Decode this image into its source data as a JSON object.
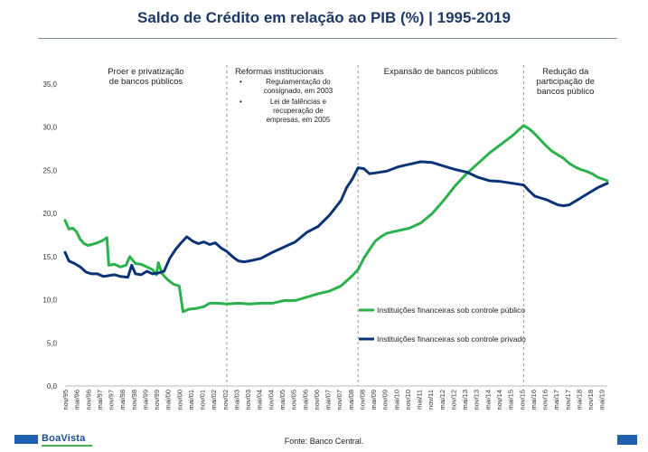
{
  "title": "Saldo de Crédito em relação ao PIB (%) | 1995-2019",
  "footer": {
    "logo_text": "BoaVista",
    "source": "Fonte: Banco Central."
  },
  "colors": {
    "publico": "#2bb24c",
    "privado": "#0b3478",
    "divider": "#999999",
    "title": "#1f3864"
  },
  "chart_data": {
    "type": "line",
    "ylim": [
      0,
      35
    ],
    "y_ticks": [
      "0,0",
      "5,0",
      "10,0",
      "15,0",
      "20,0",
      "25,0",
      "30,0",
      "35,0"
    ],
    "x_tick_labels": [
      "nov/95",
      "mai/96",
      "nov/96",
      "mai/97",
      "nov/97",
      "mai/98",
      "nov/98",
      "mai/99",
      "nov/99",
      "mai/00",
      "nov/00",
      "mai/01",
      "nov/01",
      "mai/02",
      "nov/02",
      "mai/03",
      "nov/03",
      "mai/04",
      "nov/04",
      "mai/05",
      "nov/05",
      "mai/06",
      "nov/06",
      "mai/07",
      "nov/07",
      "mai/08",
      "nov/08",
      "mai/09",
      "nov/09",
      "mai/10",
      "nov/10",
      "mai/11",
      "nov/11",
      "mai/12",
      "nov/12",
      "mai/13",
      "nov/13",
      "mai/14",
      "nov/14",
      "mai/15",
      "nov/15",
      "mai/16",
      "nov/16",
      "mai/17",
      "nov/17",
      "mai/18",
      "nov/18",
      "mai/19"
    ],
    "x_start": "1995-11",
    "x_end": "2019-08",
    "period_dividers": [
      "2002-12",
      "2008-09",
      "2015-12"
    ],
    "periods": [
      {
        "label": "Proer e privatização\nde bancos públicos",
        "bullets": []
      },
      {
        "label": "Reformas institucionais",
        "bullets": [
          "Regulamentação do\nconsignado, em 2003",
          "Lei de falências e\nrecuperação de\nempresas, em 2005"
        ]
      },
      {
        "label": "Expansão de bancos públicos",
        "bullets": []
      },
      {
        "label": "Redução da\nparticipação de\nbancos público",
        "bullets": []
      }
    ],
    "series": [
      {
        "name": "Instituições financeiras sob controle público",
        "color_key": "publico",
        "points": [
          [
            "1995-11",
            19.2
          ],
          [
            "1996-01",
            18.2
          ],
          [
            "1996-03",
            18.3
          ],
          [
            "1996-05",
            17.9
          ],
          [
            "1996-07",
            17.0
          ],
          [
            "1996-09",
            16.5
          ],
          [
            "1996-11",
            16.3
          ],
          [
            "1997-01",
            16.4
          ],
          [
            "1997-04",
            16.6
          ],
          [
            "1997-07",
            16.9
          ],
          [
            "1997-09",
            17.2
          ],
          [
            "1997-10",
            14.0
          ],
          [
            "1998-01",
            14.1
          ],
          [
            "1998-04",
            13.8
          ],
          [
            "1998-07",
            14.0
          ],
          [
            "1998-09",
            15.0
          ],
          [
            "1998-12",
            14.2
          ],
          [
            "1999-03",
            14.1
          ],
          [
            "1999-06",
            13.8
          ],
          [
            "1999-09",
            13.5
          ],
          [
            "1999-11",
            12.9
          ],
          [
            "1999-12",
            14.3
          ],
          [
            "2000-02",
            13.0
          ],
          [
            "2000-05",
            12.3
          ],
          [
            "2000-08",
            11.8
          ],
          [
            "2000-11",
            11.6
          ],
          [
            "2001-01",
            8.6
          ],
          [
            "2001-04",
            8.9
          ],
          [
            "2001-08",
            9.0
          ],
          [
            "2001-12",
            9.2
          ],
          [
            "2002-03",
            9.6
          ],
          [
            "2002-07",
            9.6
          ],
          [
            "2002-12",
            9.5
          ],
          [
            "2003-06",
            9.6
          ],
          [
            "2003-12",
            9.5
          ],
          [
            "2004-06",
            9.6
          ],
          [
            "2004-12",
            9.6
          ],
          [
            "2005-06",
            9.9
          ],
          [
            "2005-12",
            9.9
          ],
          [
            "2006-06",
            10.3
          ],
          [
            "2006-12",
            10.7
          ],
          [
            "2007-06",
            11.0
          ],
          [
            "2007-12",
            11.6
          ],
          [
            "2008-03",
            12.2
          ],
          [
            "2008-06",
            12.8
          ],
          [
            "2008-09",
            13.5
          ],
          [
            "2008-12",
            14.8
          ],
          [
            "2009-03",
            15.8
          ],
          [
            "2009-06",
            16.8
          ],
          [
            "2009-09",
            17.3
          ],
          [
            "2009-12",
            17.7
          ],
          [
            "2010-06",
            18.0
          ],
          [
            "2010-12",
            18.3
          ],
          [
            "2011-06",
            18.9
          ],
          [
            "2011-12",
            20.0
          ],
          [
            "2012-06",
            21.5
          ],
          [
            "2012-12",
            23.2
          ],
          [
            "2013-06",
            24.6
          ],
          [
            "2013-12",
            25.8
          ],
          [
            "2014-06",
            27.0
          ],
          [
            "2014-12",
            28.0
          ],
          [
            "2015-06",
            29.0
          ],
          [
            "2015-10",
            29.8
          ],
          [
            "2015-12",
            30.2
          ],
          [
            "2016-03",
            29.8
          ],
          [
            "2016-06",
            29.2
          ],
          [
            "2016-09",
            28.5
          ],
          [
            "2016-12",
            27.8
          ],
          [
            "2017-03",
            27.2
          ],
          [
            "2017-06",
            26.8
          ],
          [
            "2017-09",
            26.4
          ],
          [
            "2017-12",
            25.8
          ],
          [
            "2018-03",
            25.4
          ],
          [
            "2018-06",
            25.1
          ],
          [
            "2018-09",
            24.9
          ],
          [
            "2018-12",
            24.6
          ],
          [
            "2019-03",
            24.2
          ],
          [
            "2019-08",
            23.8
          ]
        ]
      },
      {
        "name": "Instituições financeiras sob controle privado",
        "color_key": "privado",
        "points": [
          [
            "1995-11",
            15.5
          ],
          [
            "1996-01",
            14.5
          ],
          [
            "1996-04",
            14.2
          ],
          [
            "1996-07",
            13.8
          ],
          [
            "1996-10",
            13.2
          ],
          [
            "1997-01",
            13.0
          ],
          [
            "1997-04",
            13.0
          ],
          [
            "1997-07",
            12.7
          ],
          [
            "1997-10",
            12.8
          ],
          [
            "1998-01",
            12.9
          ],
          [
            "1998-04",
            12.7
          ],
          [
            "1998-08",
            12.6
          ],
          [
            "1998-10",
            14.0
          ],
          [
            "1998-12",
            13.0
          ],
          [
            "1999-03",
            12.9
          ],
          [
            "1999-06",
            13.3
          ],
          [
            "1999-09",
            13.0
          ],
          [
            "1999-12",
            13.1
          ],
          [
            "2000-03",
            13.3
          ],
          [
            "2000-06",
            14.8
          ],
          [
            "2000-09",
            15.8
          ],
          [
            "2000-12",
            16.6
          ],
          [
            "2001-03",
            17.3
          ],
          [
            "2001-06",
            16.8
          ],
          [
            "2001-09",
            16.5
          ],
          [
            "2001-12",
            16.7
          ],
          [
            "2002-03",
            16.4
          ],
          [
            "2002-06",
            16.6
          ],
          [
            "2002-09",
            16.0
          ],
          [
            "2002-12",
            15.6
          ],
          [
            "2003-03",
            15.0
          ],
          [
            "2003-06",
            14.5
          ],
          [
            "2003-09",
            14.4
          ],
          [
            "2003-12",
            14.5
          ],
          [
            "2004-06",
            14.8
          ],
          [
            "2004-12",
            15.5
          ],
          [
            "2005-06",
            16.1
          ],
          [
            "2005-12",
            16.7
          ],
          [
            "2006-06",
            17.8
          ],
          [
            "2006-12",
            18.5
          ],
          [
            "2007-06",
            19.8
          ],
          [
            "2007-12",
            21.5
          ],
          [
            "2008-03",
            23.0
          ],
          [
            "2008-06",
            24.0
          ],
          [
            "2008-09",
            25.3
          ],
          [
            "2008-12",
            25.2
          ],
          [
            "2009-03",
            24.6
          ],
          [
            "2009-06",
            24.7
          ],
          [
            "2009-09",
            24.8
          ],
          [
            "2009-12",
            24.9
          ],
          [
            "2010-06",
            25.4
          ],
          [
            "2010-12",
            25.7
          ],
          [
            "2011-06",
            26.0
          ],
          [
            "2011-12",
            25.9
          ],
          [
            "2012-06",
            25.5
          ],
          [
            "2012-12",
            25.1
          ],
          [
            "2013-06",
            24.8
          ],
          [
            "2013-12",
            24.2
          ],
          [
            "2014-06",
            23.8
          ],
          [
            "2014-12",
            23.7
          ],
          [
            "2015-06",
            23.5
          ],
          [
            "2015-12",
            23.3
          ],
          [
            "2016-03",
            22.6
          ],
          [
            "2016-06",
            22.0
          ],
          [
            "2016-09",
            21.8
          ],
          [
            "2016-12",
            21.6
          ],
          [
            "2017-03",
            21.3
          ],
          [
            "2017-06",
            21.0
          ],
          [
            "2017-09",
            20.9
          ],
          [
            "2017-12",
            21.0
          ],
          [
            "2018-03",
            21.4
          ],
          [
            "2018-06",
            21.8
          ],
          [
            "2018-09",
            22.2
          ],
          [
            "2018-12",
            22.6
          ],
          [
            "2019-03",
            23.0
          ],
          [
            "2019-08",
            23.5
          ]
        ]
      }
    ]
  }
}
